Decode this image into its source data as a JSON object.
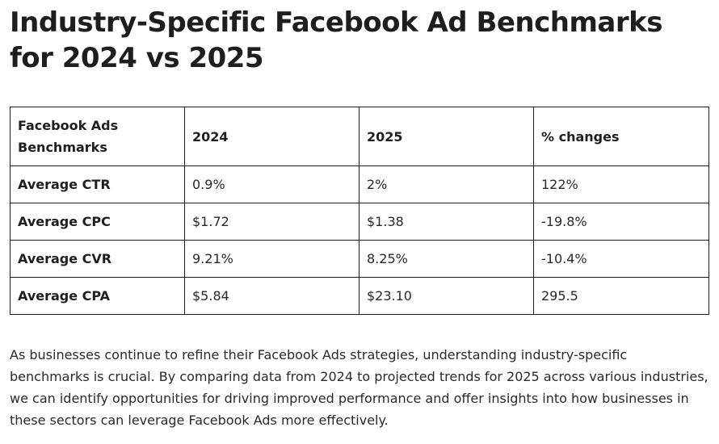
{
  "title": "Industry-Specific Facebook Ad Benchmarks for 2024 vs 2025",
  "table": {
    "headers": [
      "Facebook Ads Benchmarks",
      "2024",
      "2025",
      "% changes"
    ],
    "rows": [
      [
        "Average CTR",
        "0.9%",
        "2%",
        "122%"
      ],
      [
        "Average CPC",
        "$1.72",
        "$1.38",
        "-19.8%"
      ],
      [
        "Average CVR",
        "9.21%",
        "8.25%",
        "-10.4%"
      ],
      [
        "Average CPA",
        "$5.84",
        "$23.10",
        "295.5"
      ]
    ]
  },
  "paragraph": "As businesses continue to refine their Facebook Ads strategies, understanding industry-specific benchmarks is crucial. By comparing data from 2024 to projected trends for 2025 across various industries, we can identify opportunities for driving improved performance and offer insights into how businesses in these sectors can leverage Facebook Ads more effectively."
}
